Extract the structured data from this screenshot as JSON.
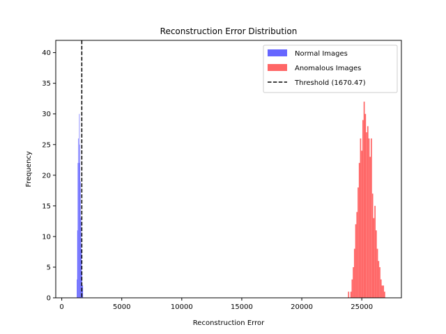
{
  "chart_data": {
    "type": "histogram",
    "title": "Reconstruction Error Distribution",
    "xlabel": "Reconstruction Error",
    "ylabel": "Frequency",
    "xlim": [
      -500,
      28300
    ],
    "ylim": [
      0,
      42
    ],
    "xticks": [
      0,
      5000,
      10000,
      15000,
      20000,
      25000
    ],
    "yticks": [
      0,
      5,
      10,
      15,
      20,
      25,
      30,
      35,
      40
    ],
    "legend_position": "top-right",
    "threshold": {
      "name": "Threshold (1670.47)",
      "value": 1670.47,
      "color": "#000000",
      "style": "dashed"
    },
    "series": [
      {
        "name": "Normal Images",
        "color": "#6666ff",
        "bins": [
          {
            "x0": 1250,
            "x1": 1290,
            "count": 3
          },
          {
            "x0": 1290,
            "x1": 1330,
            "count": 11
          },
          {
            "x0": 1330,
            "x1": 1370,
            "count": 22
          },
          {
            "x0": 1370,
            "x1": 1410,
            "count": 26
          },
          {
            "x0": 1410,
            "x1": 1450,
            "count": 22
          },
          {
            "x0": 1450,
            "x1": 1490,
            "count": 30
          },
          {
            "x0": 1490,
            "x1": 1530,
            "count": 25
          },
          {
            "x0": 1530,
            "x1": 1570,
            "count": 19
          },
          {
            "x0": 1570,
            "x1": 1610,
            "count": 13
          },
          {
            "x0": 1610,
            "x1": 1650,
            "count": 8
          },
          {
            "x0": 1650,
            "x1": 1690,
            "count": 4
          },
          {
            "x0": 1690,
            "x1": 1730,
            "count": 2
          },
          {
            "x0": 1730,
            "x1": 1770,
            "count": 2
          }
        ]
      },
      {
        "name": "Anomalous Images",
        "color": "#ff6666",
        "bins": [
          {
            "x0": 23850,
            "x1": 23950,
            "count": 1
          },
          {
            "x0": 24050,
            "x1": 24150,
            "count": 1
          },
          {
            "x0": 24150,
            "x1": 24250,
            "count": 3
          },
          {
            "x0": 24250,
            "x1": 24350,
            "count": 5
          },
          {
            "x0": 24350,
            "x1": 24450,
            "count": 8
          },
          {
            "x0": 24450,
            "x1": 24550,
            "count": 12
          },
          {
            "x0": 24550,
            "x1": 24650,
            "count": 14
          },
          {
            "x0": 24650,
            "x1": 24750,
            "count": 18
          },
          {
            "x0": 24750,
            "x1": 24850,
            "count": 22
          },
          {
            "x0": 24850,
            "x1": 24950,
            "count": 26
          },
          {
            "x0": 24950,
            "x1": 25050,
            "count": 24
          },
          {
            "x0": 25050,
            "x1": 25150,
            "count": 29
          },
          {
            "x0": 25150,
            "x1": 25250,
            "count": 32
          },
          {
            "x0": 25250,
            "x1": 25350,
            "count": 30
          },
          {
            "x0": 25350,
            "x1": 25450,
            "count": 27
          },
          {
            "x0": 25450,
            "x1": 25550,
            "count": 28
          },
          {
            "x0": 25550,
            "x1": 25650,
            "count": 26
          },
          {
            "x0": 25650,
            "x1": 25750,
            "count": 23
          },
          {
            "x0": 25750,
            "x1": 25850,
            "count": 26
          },
          {
            "x0": 25850,
            "x1": 25950,
            "count": 17
          },
          {
            "x0": 25950,
            "x1": 26050,
            "count": 13
          },
          {
            "x0": 26050,
            "x1": 26150,
            "count": 15
          },
          {
            "x0": 26150,
            "x1": 26250,
            "count": 11
          },
          {
            "x0": 26250,
            "x1": 26350,
            "count": 8
          },
          {
            "x0": 26350,
            "x1": 26450,
            "count": 6
          },
          {
            "x0": 26450,
            "x1": 26550,
            "count": 5
          },
          {
            "x0": 26550,
            "x1": 26650,
            "count": 3
          },
          {
            "x0": 26650,
            "x1": 26750,
            "count": 2
          },
          {
            "x0": 26750,
            "x1": 26850,
            "count": 2
          },
          {
            "x0": 26850,
            "x1": 26950,
            "count": 1
          }
        ]
      }
    ]
  }
}
